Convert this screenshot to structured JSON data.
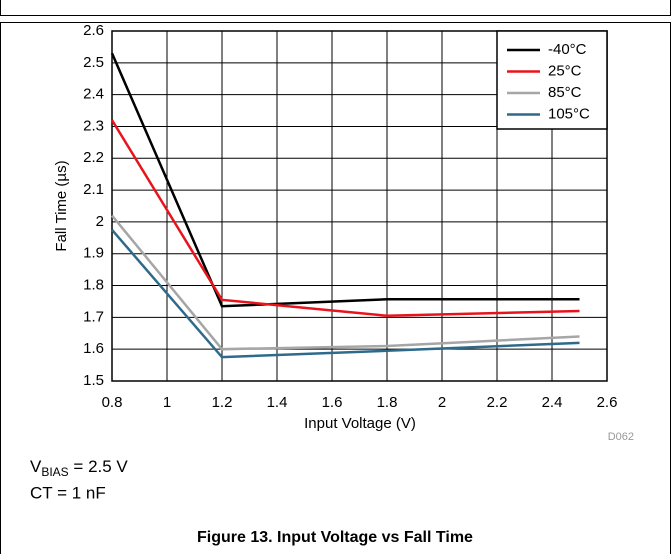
{
  "chart_data": {
    "type": "line",
    "xlabel": "Input Voltage (V)",
    "ylabel": "Fall Time (µs)",
    "figure_id": "D062",
    "notes": [
      {
        "text": "V",
        "sub": "BIAS",
        "after": " = 2.5 V"
      },
      {
        "text": "CT = 1 nF"
      }
    ],
    "caption": "Figure 13. Input Voltage vs Fall Time",
    "x": [
      0.8,
      1.2,
      1.8,
      2.5
    ],
    "series": [
      {
        "name": "-40°C",
        "color": "#000000",
        "values": [
          2.53,
          1.735,
          1.757,
          1.757
        ]
      },
      {
        "name": "25°C",
        "color": "#e8141c",
        "values": [
          2.32,
          1.755,
          1.705,
          1.72
        ]
      },
      {
        "name": "85°C",
        "color": "#a6a6a6",
        "values": [
          2.02,
          1.6,
          1.61,
          1.64
        ]
      },
      {
        "name": "105°C",
        "color": "#2e6a8a",
        "values": [
          1.975,
          1.575,
          1.595,
          1.62
        ]
      }
    ],
    "xlim": [
      0.8,
      2.6
    ],
    "xticks": [
      0.8,
      1,
      1.2,
      1.4,
      1.6,
      1.8,
      2,
      2.2,
      2.4,
      2.6
    ],
    "ylim": [
      1.5,
      2.6
    ],
    "yticks": [
      1.5,
      1.6,
      1.7,
      1.8,
      1.9,
      2,
      2.1,
      2.2,
      2.3,
      2.4,
      2.5,
      2.6
    ],
    "grid": true,
    "legend": "top-right"
  }
}
